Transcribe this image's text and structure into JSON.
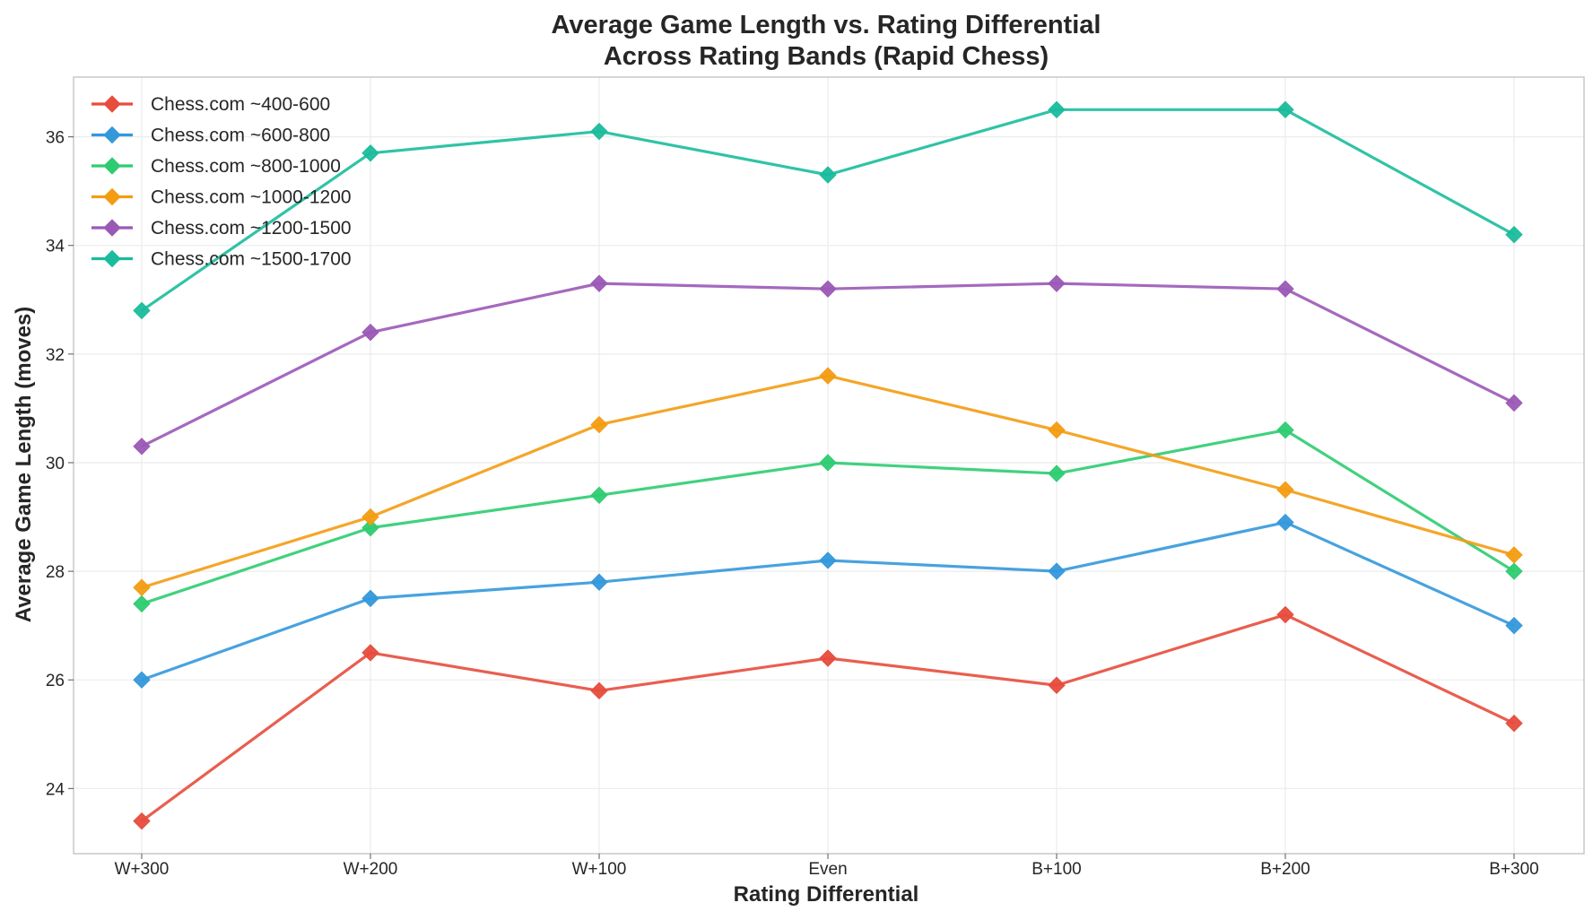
{
  "chart_data": {
    "type": "line",
    "title": "Average Game Length vs. Rating Differential",
    "subtitle": "Across Rating Bands (Rapid Chess)",
    "xlabel": "Rating Differential",
    "ylabel": "Average Game Length (moves)",
    "categories": [
      "W+300",
      "W+200",
      "W+100",
      "Even",
      "B+100",
      "B+200",
      "B+300"
    ],
    "ylim": [
      22.8,
      37.1
    ],
    "yticks": [
      24,
      26,
      28,
      30,
      32,
      34,
      36
    ],
    "grid": true,
    "legend_position": "top-left",
    "marker": "diamond",
    "series": [
      {
        "name": "Chess.com ~400-600",
        "color": "#e74c3c",
        "values": [
          23.4,
          26.5,
          25.8,
          26.4,
          25.9,
          27.2,
          25.2
        ]
      },
      {
        "name": "Chess.com ~600-800",
        "color": "#3498db",
        "values": [
          26.0,
          27.5,
          27.8,
          28.2,
          28.0,
          28.9,
          27.0
        ]
      },
      {
        "name": "Chess.com ~800-1000",
        "color": "#2ecc71",
        "values": [
          27.4,
          28.8,
          29.4,
          30.0,
          29.8,
          30.6,
          28.0
        ]
      },
      {
        "name": "Chess.com ~1000-1200",
        "color": "#f39c12",
        "values": [
          27.7,
          29.0,
          30.7,
          31.6,
          30.6,
          29.5,
          28.3
        ]
      },
      {
        "name": "Chess.com ~1200-1500",
        "color": "#9b59b6",
        "values": [
          30.3,
          32.4,
          33.3,
          33.2,
          33.3,
          33.2,
          31.1
        ]
      },
      {
        "name": "Chess.com ~1500-1700",
        "color": "#1abc9c",
        "values": [
          32.8,
          35.7,
          36.1,
          35.3,
          36.5,
          36.5,
          34.2
        ]
      }
    ]
  }
}
